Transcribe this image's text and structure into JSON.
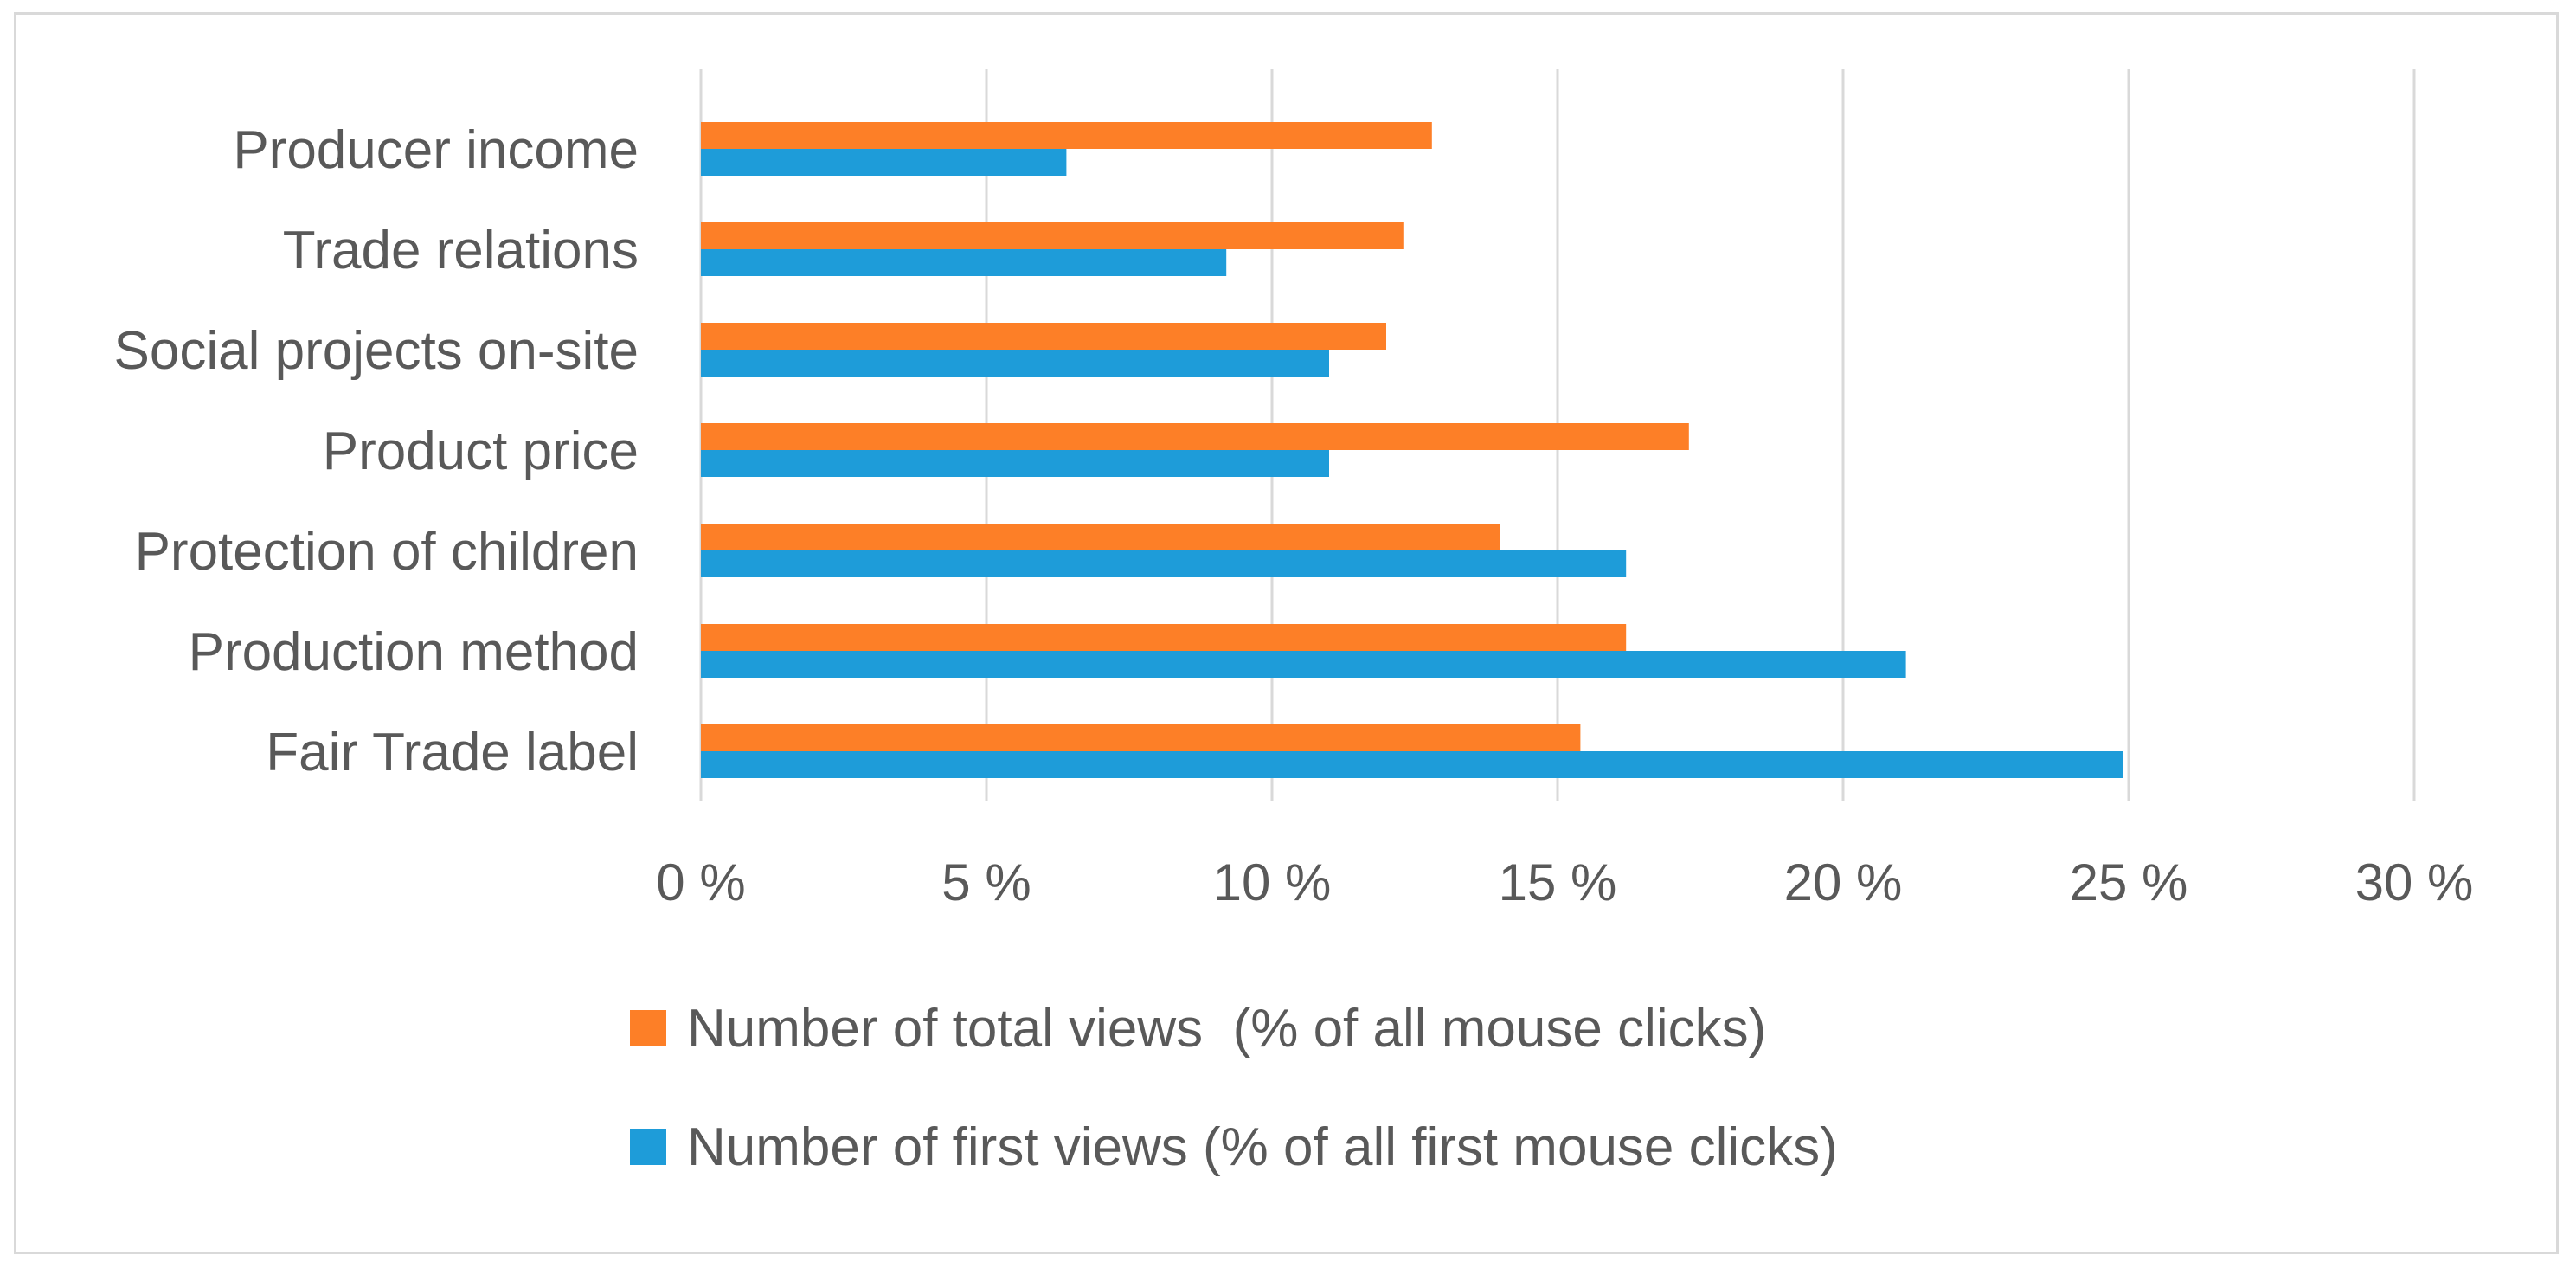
{
  "chart_data": {
    "type": "bar",
    "orientation": "horizontal",
    "categories": [
      "Producer income",
      "Trade relations",
      "Social projects on-site",
      "Product price",
      "Protection of children",
      "Production method",
      "Fair Trade label"
    ],
    "series": [
      {
        "name": "Number of total views  (% of all mouse clicks)",
        "color": "#fd7f27",
        "values": [
          12.8,
          12.3,
          12.0,
          17.3,
          14.0,
          16.2,
          15.4
        ]
      },
      {
        "name": "Number of first views (% of all first mouse clicks)",
        "color": "#1e9cd9",
        "values": [
          6.4,
          9.2,
          11.0,
          11.0,
          16.2,
          21.1,
          24.9
        ]
      }
    ],
    "xlim": [
      0,
      30
    ],
    "xticks": [
      0,
      5,
      10,
      15,
      20,
      25,
      30
    ],
    "xtick_labels": [
      "0 %",
      "5 %",
      "10 %",
      "15 %",
      "20 %",
      "25 %",
      "30 %"
    ],
    "grid": "vertical",
    "legend": "bottom",
    "title": "",
    "xlabel": "",
    "ylabel": ""
  }
}
